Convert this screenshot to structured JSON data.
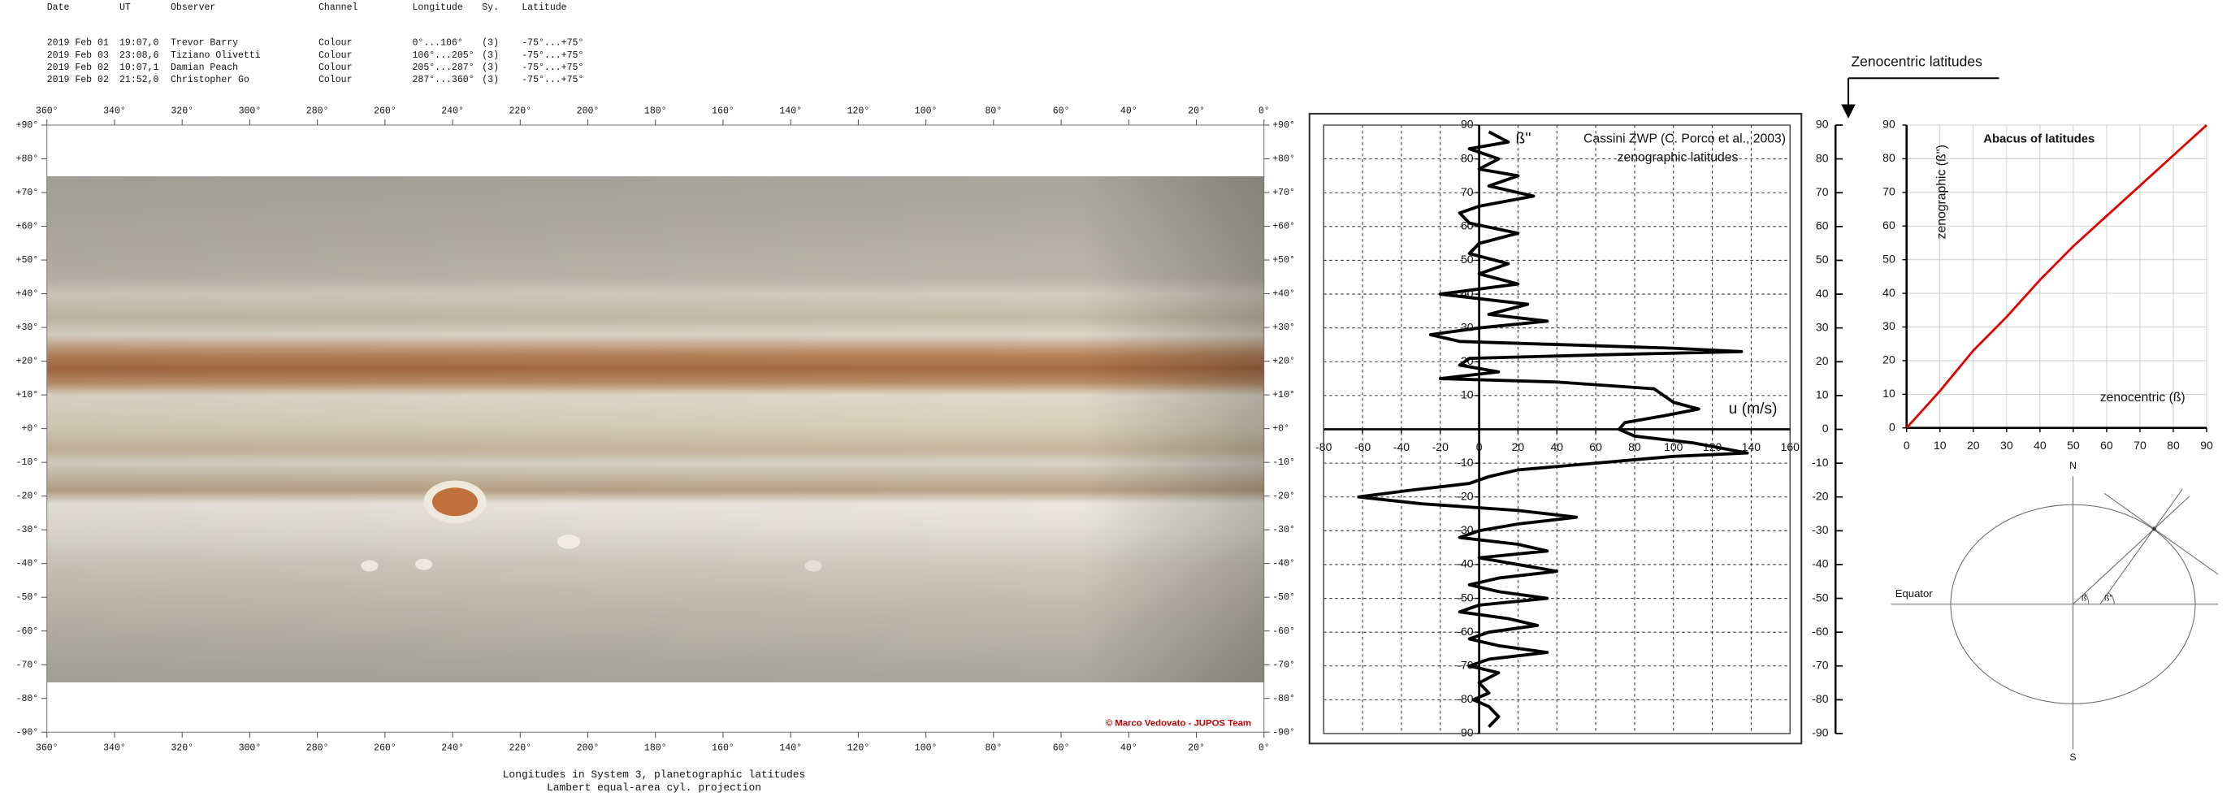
{
  "table": {
    "columns": [
      "Date",
      "UT",
      "Observer",
      "Channel",
      "Longitude",
      "Sy.",
      "Latitude"
    ],
    "rows": [
      [
        "2019 Feb 01",
        "19:07,0",
        "Trevor Barry",
        "Colour",
        "0°...106°",
        "(3)",
        "-75°...+75°"
      ],
      [
        "2019 Feb 03",
        "23:08,6",
        "Tiziano Olivetti",
        "Colour",
        "106°...205°",
        "(3)",
        "-75°...+75°"
      ],
      [
        "2019 Feb 02",
        "10:07,1",
        "Damian Peach",
        "Colour",
        "205°...287°",
        "(3)",
        "-75°...+75°"
      ],
      [
        "2019 Feb 02",
        "21:52,0",
        "Christopher Go",
        "Colour",
        "287°...360°",
        "(3)",
        "-75°...+75°"
      ]
    ]
  },
  "map": {
    "xlim": [
      360,
      0
    ],
    "ylim": [
      -90,
      90
    ],
    "lon_ticks": [
      {
        "value": 360,
        "label": "360°"
      },
      {
        "value": 340,
        "label": "340°"
      },
      {
        "value": 320,
        "label": "320°"
      },
      {
        "value": 300,
        "label": "300°"
      },
      {
        "value": 280,
        "label": "280°"
      },
      {
        "value": 260,
        "label": "260°"
      },
      {
        "value": 240,
        "label": "240°"
      },
      {
        "value": 220,
        "label": "220°"
      },
      {
        "value": 200,
        "label": "200°"
      },
      {
        "value": 180,
        "label": "180°"
      },
      {
        "value": 160,
        "label": "160°"
      },
      {
        "value": 140,
        "label": "140°"
      },
      {
        "value": 120,
        "label": "120°"
      },
      {
        "value": 100,
        "label": "100°"
      },
      {
        "value": 80,
        "label": "80°"
      },
      {
        "value": 60,
        "label": "60°"
      },
      {
        "value": 40,
        "label": "40°"
      },
      {
        "value": 20,
        "label": "20°"
      },
      {
        "value": 0,
        "label": "0°"
      }
    ],
    "lat_ticks": [
      {
        "value": 90,
        "label": "+90°"
      },
      {
        "value": 80,
        "label": "+80°"
      },
      {
        "value": 70,
        "label": "+70°"
      },
      {
        "value": 60,
        "label": "+60°"
      },
      {
        "value": 50,
        "label": "+50°"
      },
      {
        "value": 40,
        "label": "+40°"
      },
      {
        "value": 30,
        "label": "+30°"
      },
      {
        "value": 20,
        "label": "+20°"
      },
      {
        "value": 10,
        "label": "+10°"
      },
      {
        "value": 0,
        "label": "+0°"
      },
      {
        "value": -10,
        "label": "-10°"
      },
      {
        "value": -20,
        "label": "-20°"
      },
      {
        "value": -30,
        "label": "-30°"
      },
      {
        "value": -40,
        "label": "-40°"
      },
      {
        "value": -50,
        "label": "-50°"
      },
      {
        "value": -60,
        "label": "-60°"
      },
      {
        "value": -70,
        "label": "-70°"
      },
      {
        "value": -80,
        "label": "-80°"
      },
      {
        "value": -90,
        "label": "-90°"
      }
    ],
    "caption": [
      "Longitudes in System 3, planetographic latitudes",
      "Lambert equal-area cyl. projection"
    ],
    "credit": "© Marco Vedovato - JUPOS Team"
  },
  "chart_data": [
    {
      "type": "line",
      "title": "Cassini ZWP (C. Porco et al., 2003)",
      "subtitle": "zenographic latitudes",
      "x_label": "u (m/s)",
      "y_label": "ß''",
      "y2_label": "Zenocentric latitudes",
      "xlim": [
        -80,
        160
      ],
      "xticks": [
        -80,
        -60,
        -40,
        -20,
        0,
        20,
        40,
        60,
        80,
        100,
        120,
        140,
        160
      ],
      "ylim": [
        -90,
        90
      ],
      "yticks": [
        90,
        80,
        70,
        60,
        50,
        40,
        30,
        20,
        10,
        -10,
        -20,
        -30,
        -40,
        -50,
        -60,
        -70,
        -80,
        -90
      ],
      "y2lim": [
        -90,
        90
      ],
      "y2ticks": [
        90,
        80,
        70,
        60,
        50,
        40,
        30,
        20,
        10,
        0,
        -10,
        -20,
        -30,
        -40,
        -50,
        -60,
        -70,
        -80,
        -90
      ],
      "grid": true,
      "series": [
        {
          "color": "#000000",
          "x": [
            5,
            15,
            -5,
            10,
            0,
            20,
            5,
            28,
            0,
            -10,
            -5,
            20,
            0,
            -5,
            15,
            0,
            20,
            -20,
            25,
            5,
            35,
            0,
            -25,
            -10,
            100,
            135,
            60,
            -5,
            -10,
            10,
            -20,
            40,
            90,
            100,
            113,
            95,
            75,
            72,
            80,
            110,
            138,
            100,
            60,
            20,
            5,
            -5,
            -35,
            -62,
            -30,
            20,
            50,
            20,
            0,
            -10,
            20,
            35,
            0,
            20,
            40,
            10,
            -5,
            10,
            35,
            0,
            -10,
            15,
            30,
            5,
            -5,
            10,
            35,
            5,
            -5,
            10,
            0,
            5,
            -3,
            5,
            10,
            5
          ],
          "values": [
            88,
            85,
            83,
            80,
            77,
            75,
            72,
            69,
            66,
            64,
            61,
            58,
            55,
            52,
            49,
            46,
            43,
            40,
            37,
            34,
            32,
            30,
            28,
            26,
            24,
            23,
            22,
            21,
            19,
            17,
            15,
            14,
            12,
            8,
            6,
            4,
            2,
            0,
            -2,
            -4,
            -7,
            -8,
            -10,
            -12,
            -14,
            -16,
            -18,
            -20,
            -22,
            -24,
            -26,
            -28,
            -30,
            -32,
            -34,
            -36,
            -38,
            -40,
            -42,
            -44,
            -46,
            -48,
            -50,
            -52,
            -54,
            -56,
            -58,
            -60,
            -62,
            -64,
            -66,
            -68,
            -70,
            -72,
            -75,
            -78,
            -80,
            -82,
            -85,
            -88
          ]
        }
      ]
    },
    {
      "type": "line",
      "title": "Abacus of latitudes",
      "x_label": "zenocentric (ß)",
      "y_label": "zenographic (ß'')",
      "xlim": [
        0,
        90
      ],
      "xticks": [
        0,
        10,
        20,
        30,
        40,
        50,
        60,
        70,
        80,
        90
      ],
      "ylim": [
        0,
        90
      ],
      "yticks": [
        0,
        10,
        20,
        30,
        40,
        50,
        60,
        70,
        80,
        90
      ],
      "grid": true,
      "series": [
        {
          "color": "#e00000",
          "x": [
            0,
            10,
            20,
            30,
            40,
            50,
            60,
            70,
            80,
            90
          ],
          "values": [
            0,
            11,
            23,
            33,
            44,
            54,
            63,
            72,
            81,
            90
          ]
        }
      ]
    }
  ],
  "diagram": {
    "north": "N",
    "south": "S",
    "equator": "Equator",
    "angle_centric": "ß",
    "angle_graphic": "ß''"
  }
}
